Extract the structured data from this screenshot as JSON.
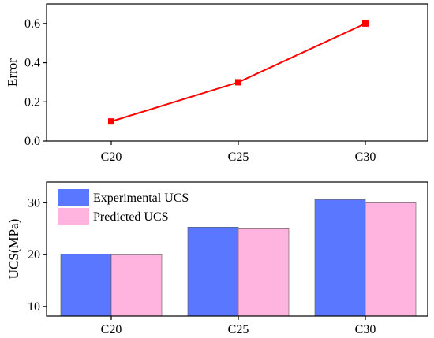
{
  "chart_data": [
    {
      "type": "line",
      "categories": [
        "C20",
        "C25",
        "C30"
      ],
      "series": [
        {
          "values": [
            0.1,
            0.3,
            0.6
          ],
          "color": "#ff0000",
          "marker": "square"
        }
      ],
      "xlabel": "",
      "ylabel": "Error",
      "ylim": [
        0.0,
        0.7
      ],
      "yticks": [
        0.0,
        0.2,
        0.4,
        0.6
      ],
      "ytick_labels": [
        "0.0",
        "0.2",
        "0.4",
        "0.6"
      ],
      "grid": false
    },
    {
      "type": "bar",
      "categories": [
        "C20",
        "C25",
        "C30"
      ],
      "series": [
        {
          "name": "Experimental UCS",
          "values": [
            20.1,
            25.3,
            30.6
          ],
          "color": "#5a78ff"
        },
        {
          "name": "Predicted UCS",
          "values": [
            20.0,
            25.0,
            30.0
          ],
          "color": "#ffb4df"
        }
      ],
      "xlabel": "",
      "ylabel": "UCS(MPa)",
      "ylim": [
        8.2,
        34
      ],
      "yticks": [
        10,
        20,
        30
      ],
      "ytick_labels": [
        "10",
        "20",
        "30"
      ],
      "legend_position": "top-left",
      "grid": false
    }
  ]
}
